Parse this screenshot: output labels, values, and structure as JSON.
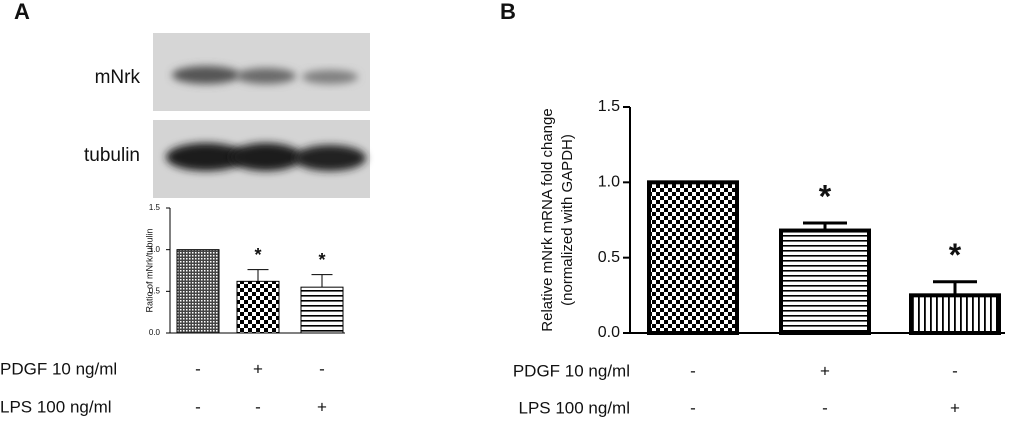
{
  "chart_data": [
    {
      "type": "bar",
      "panel_label": "A",
      "blot_labels": [
        "mNrk",
        "tubulin"
      ],
      "ylabel": "Ratio of mNrk/tubulin",
      "values": [
        1.0,
        0.62,
        0.55
      ],
      "errors": [
        0,
        0.14,
        0.15
      ],
      "significance": [
        null,
        "*",
        "*"
      ],
      "patterns": [
        "dots",
        "checker",
        "hlines"
      ],
      "color": "#000000",
      "ylim": [
        0,
        1.5
      ],
      "yticks": [
        {
          "value": 0,
          "label": "0.0"
        },
        {
          "value": 0.5,
          "label": "0.5"
        },
        {
          "value": 1,
          "label": "1.0"
        },
        {
          "value": 1.5,
          "label": "1.5"
        }
      ],
      "conditions": [
        {
          "name": "PDGF 10 ng/ml",
          "signs": [
            "-",
            "+",
            "-"
          ]
        },
        {
          "name": "LPS 100 ng/ml",
          "signs": [
            "-",
            "-",
            "+"
          ]
        }
      ]
    },
    {
      "type": "bar",
      "panel_label": "B",
      "ylabel": [
        "Relative mNrk mRNA fold change",
        "(normalized with GAPDH)"
      ],
      "values": [
        1.0,
        0.68,
        0.25
      ],
      "errors": [
        0,
        0.05,
        0.09
      ],
      "significance": [
        null,
        "*",
        "*"
      ],
      "patterns": [
        "checker",
        "hlines",
        "vlines"
      ],
      "color": "#000000",
      "ylim": [
        0,
        1.5
      ],
      "yticks": [
        {
          "value": 0,
          "label": "0.0"
        },
        {
          "value": 0.5,
          "label": "0.5"
        },
        {
          "value": 1,
          "label": "1.0"
        },
        {
          "value": 1.5,
          "label": "1.5"
        }
      ],
      "conditions": [
        {
          "name": "PDGF 10 ng/ml",
          "signs": [
            "-",
            "+",
            "-"
          ]
        },
        {
          "name": "LPS 100 ng/ml",
          "signs": [
            "-",
            "-",
            "+"
          ]
        }
      ]
    }
  ]
}
